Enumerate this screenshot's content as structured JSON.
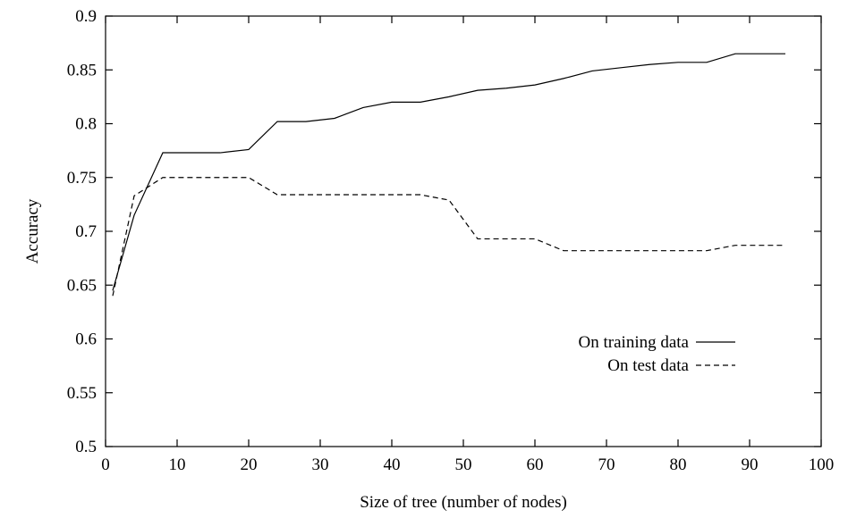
{
  "chart_data": {
    "type": "line",
    "title": "",
    "xlabel": "Size of tree (number of nodes)",
    "ylabel": "Accuracy",
    "xlim": [
      0,
      100
    ],
    "ylim": [
      0.5,
      0.9
    ],
    "xticks": [
      "0",
      "10",
      "20",
      "30",
      "40",
      "50",
      "60",
      "70",
      "80",
      "90",
      "100"
    ],
    "yticks": [
      "0.5",
      "0.55",
      "0.6",
      "0.65",
      "0.7",
      "0.75",
      "0.8",
      "0.85",
      "0.9"
    ],
    "grid": false,
    "legend_position": "right",
    "series": [
      {
        "name": "On training data",
        "style": "solid",
        "x": [
          1,
          4,
          8,
          12,
          16,
          20,
          24,
          28,
          32,
          36,
          40,
          44,
          48,
          52,
          56,
          60,
          64,
          68,
          72,
          76,
          80,
          84,
          88,
          92,
          95
        ],
        "y": [
          0.645,
          0.715,
          0.773,
          0.773,
          0.773,
          0.776,
          0.802,
          0.802,
          0.805,
          0.815,
          0.82,
          0.82,
          0.825,
          0.831,
          0.833,
          0.836,
          0.842,
          0.849,
          0.852,
          0.855,
          0.857,
          0.857,
          0.865,
          0.865,
          0.865
        ]
      },
      {
        "name": "On test data",
        "style": "dashed",
        "x": [
          1,
          4,
          8,
          12,
          16,
          20,
          24,
          28,
          32,
          36,
          40,
          44,
          48,
          52,
          56,
          60,
          64,
          68,
          72,
          76,
          80,
          84,
          88,
          92,
          95
        ],
        "y": [
          0.64,
          0.733,
          0.75,
          0.75,
          0.75,
          0.75,
          0.734,
          0.734,
          0.734,
          0.734,
          0.734,
          0.734,
          0.729,
          0.693,
          0.693,
          0.693,
          0.682,
          0.682,
          0.682,
          0.682,
          0.682,
          0.682,
          0.687,
          0.687,
          0.687
        ]
      }
    ]
  }
}
